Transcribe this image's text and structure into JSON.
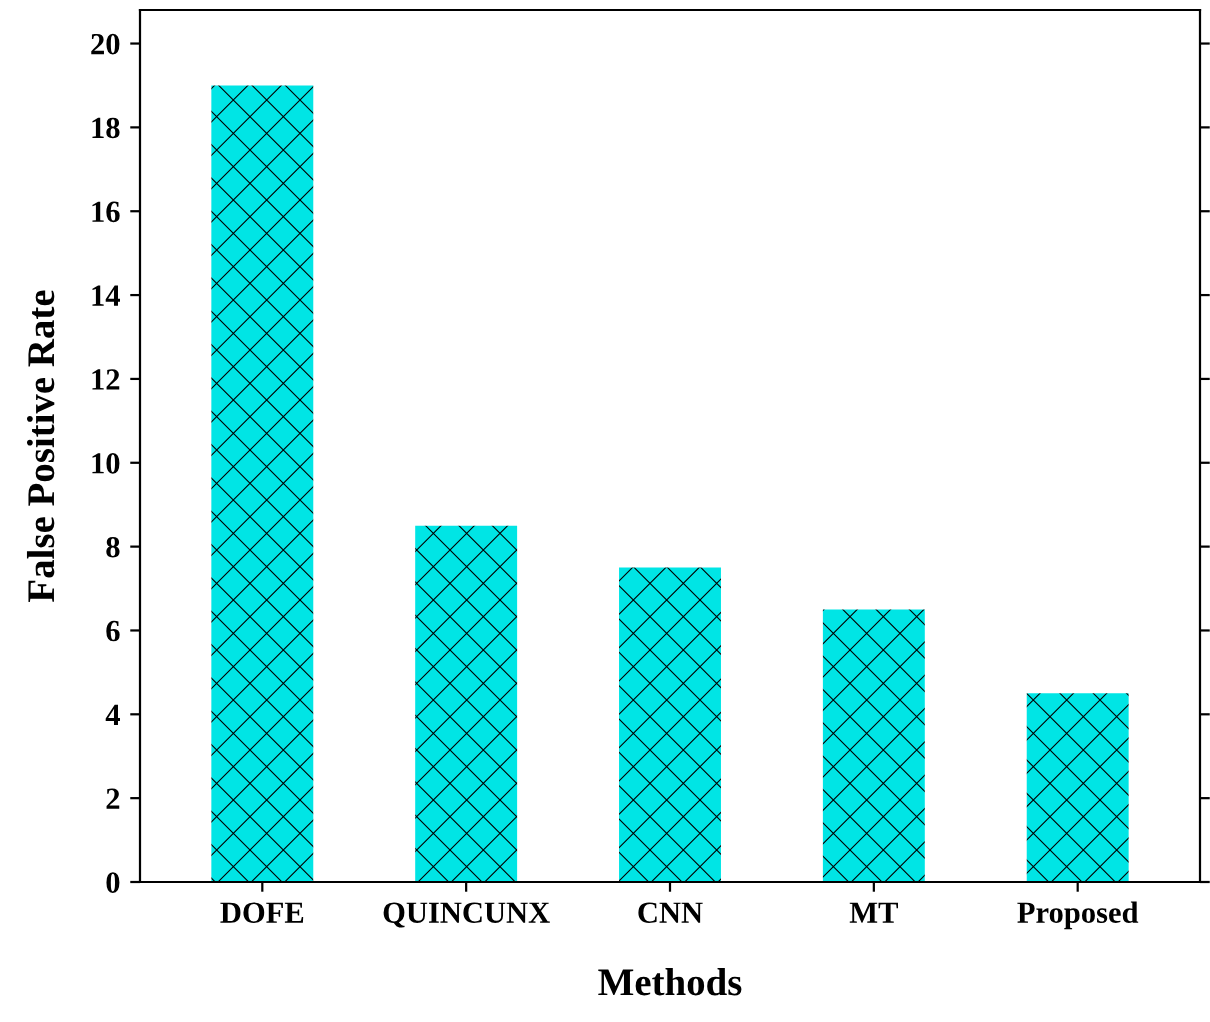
{
  "chart_data": {
    "type": "bar",
    "xlabel": "Methods",
    "ylabel": "False Positive Rate",
    "categories": [
      "DOFE",
      "QUINCUNX",
      "CNN",
      "MT",
      "Proposed"
    ],
    "values": [
      19,
      8.5,
      7.5,
      6.5,
      4.5
    ],
    "color": "#00e5e5",
    "ylim": [
      0,
      20.8
    ],
    "yticks": [
      0,
      2,
      4,
      6,
      8,
      10,
      12,
      14,
      16,
      18,
      20
    ],
    "grid": false
  }
}
